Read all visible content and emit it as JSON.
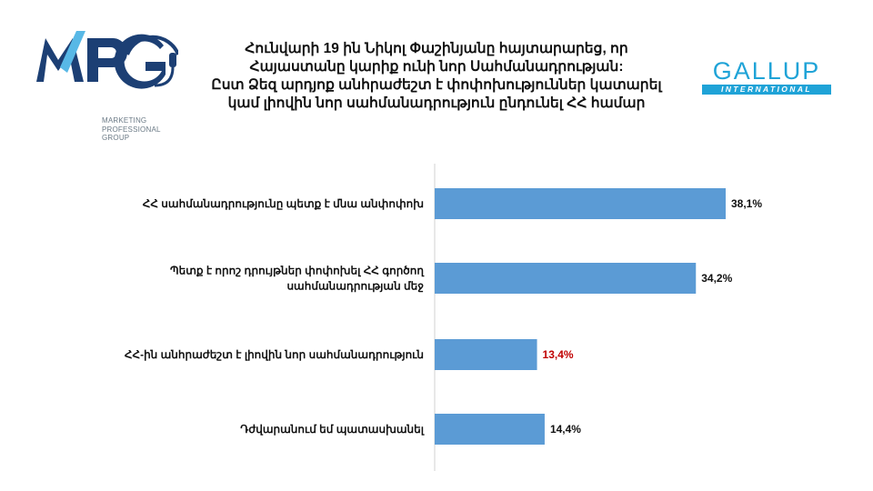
{
  "header": {
    "title_lines": [
      "Հունվարի 19 ին Նիկոլ Փաշինյանը հայտարարեց, որ",
      "Հայաստանը կարիք ունի նոր Սահմանադրության:",
      "Ըստ Ձեզ արդյոք անհրաժեշտ է փոփոխություններ կատարել",
      "կամ լիովին նոր սահմանադրություն ընդունել ՀՀ համար"
    ],
    "mpg_logo": {
      "text": "MPG",
      "subtitle": "MARKETING\nPROFESSIONAL\nGROUP",
      "icon": "headset-icon"
    },
    "gallup_logo": {
      "text": "GALLUP",
      "subtitle": "INTERNATIONAL"
    }
  },
  "chart_data": {
    "type": "bar",
    "orientation": "horizontal",
    "categories": [
      [
        "ՀՀ սահմանադրությունը պետք է մնա անփոփոխ"
      ],
      [
        "Պետք է որոշ դրույթներ փոփոխել ՀՀ գործող",
        "սահմանադրության մեջ"
      ],
      [
        "ՀՀ-ին անհրաժեշտ է լիովին նոր սահմանադրություն"
      ],
      [
        "Դժվարանում եմ պատասխանել"
      ]
    ],
    "values": [
      38.1,
      34.2,
      13.4,
      14.4
    ],
    "value_labels": [
      "38,1%",
      "34,2%",
      "13,4%",
      "14,4%"
    ],
    "label_colors": [
      "#111111",
      "#111111",
      "#c00000",
      "#111111"
    ],
    "bar_color": "#5b9bd5",
    "xlim": [
      0,
      45
    ],
    "grid": false
  }
}
